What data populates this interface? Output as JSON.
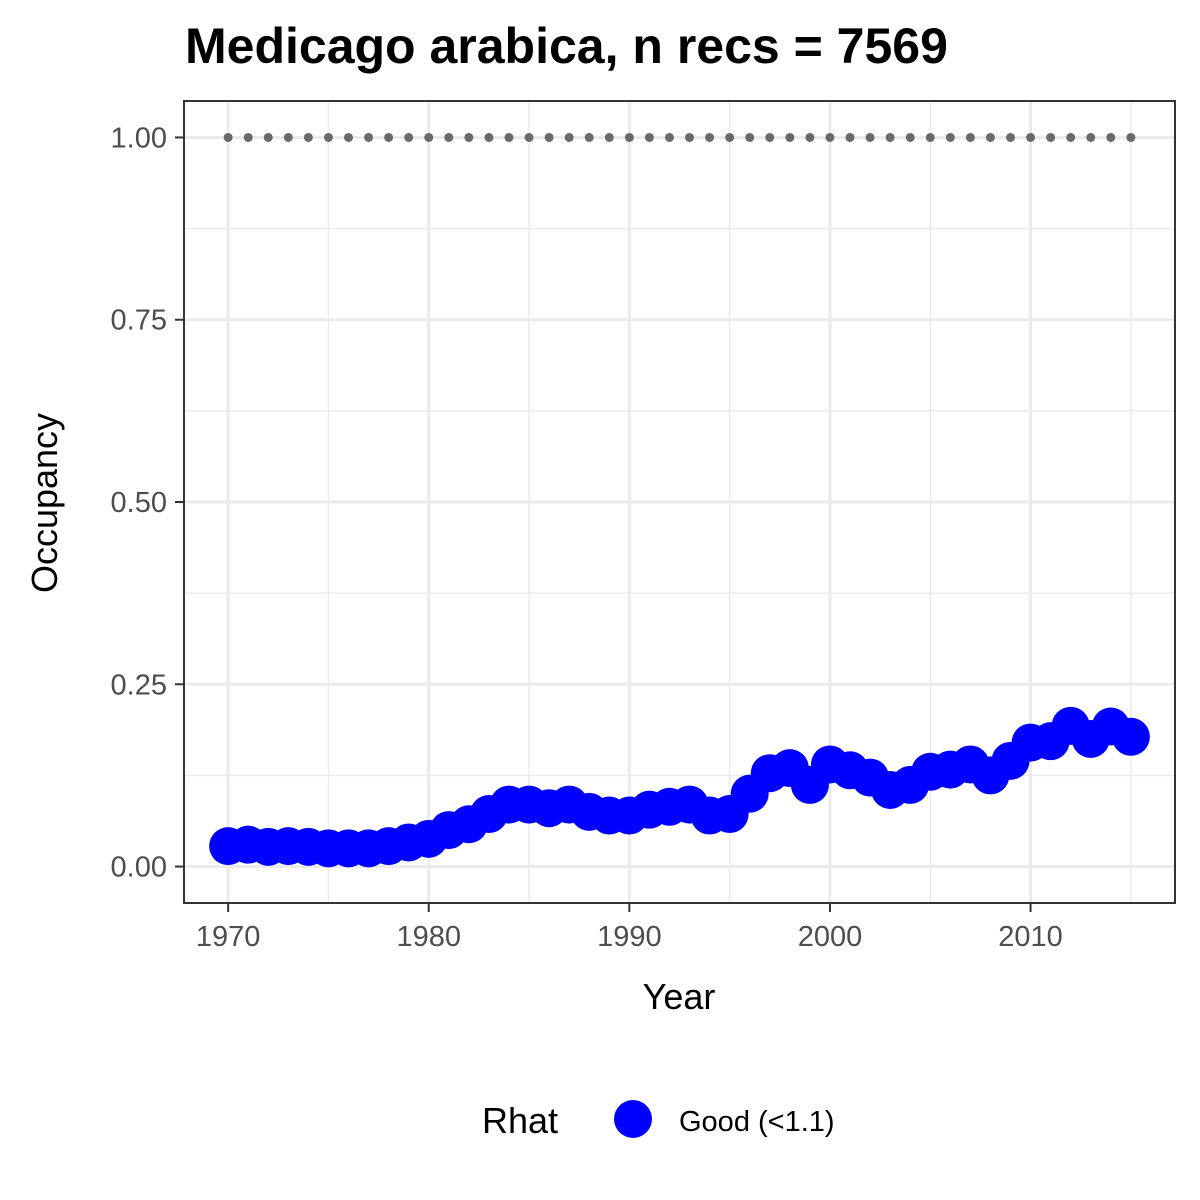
{
  "chart_data": {
    "type": "scatter",
    "title": "Medicago arabica, n recs = 7569",
    "xlabel": "Year",
    "ylabel": "Occupancy",
    "xlim": [
      1967.8,
      2017.2
    ],
    "ylim": [
      -0.05,
      1.05
    ],
    "x_ticks": [
      1970,
      1980,
      1990,
      2000,
      2010
    ],
    "x_tick_labels": [
      "1970",
      "1980",
      "1990",
      "2000",
      "2010"
    ],
    "y_ticks": [
      0,
      0.25,
      0.5,
      0.75,
      1
    ],
    "y_tick_labels": [
      "0.00",
      "0.25",
      "0.50",
      "0.75",
      "1.00"
    ],
    "grid": true,
    "legend": {
      "title": "Rhat",
      "position": "bottom",
      "entries": [
        "Good (<1.1)"
      ]
    },
    "series": [
      {
        "name": "Good (<1.1)",
        "color": "#0000ff",
        "x": [
          1970,
          1971,
          1972,
          1973,
          1974,
          1975,
          1976,
          1977,
          1978,
          1979,
          1980,
          1981,
          1982,
          1983,
          1984,
          1985,
          1986,
          1987,
          1988,
          1989,
          1990,
          1991,
          1992,
          1993,
          1994,
          1995,
          1996,
          1997,
          1998,
          1999,
          2000,
          2001,
          2002,
          2003,
          2004,
          2005,
          2006,
          2007,
          2008,
          2009,
          2010,
          2011,
          2012,
          2013,
          2014,
          2015
        ],
        "y": [
          0.028,
          0.03,
          0.027,
          0.028,
          0.027,
          0.025,
          0.025,
          0.025,
          0.028,
          0.033,
          0.038,
          0.05,
          0.058,
          0.072,
          0.085,
          0.085,
          0.08,
          0.085,
          0.075,
          0.07,
          0.07,
          0.078,
          0.082,
          0.085,
          0.07,
          0.072,
          0.1,
          0.128,
          0.135,
          0.112,
          0.14,
          0.132,
          0.122,
          0.105,
          0.112,
          0.13,
          0.133,
          0.14,
          0.125,
          0.145,
          0.17,
          0.172,
          0.193,
          0.175,
          0.192,
          0.178
        ]
      },
      {
        "name": "",
        "color": "#696969",
        "x": [
          1970,
          1971,
          1972,
          1973,
          1974,
          1975,
          1976,
          1977,
          1978,
          1979,
          1980,
          1981,
          1982,
          1983,
          1984,
          1985,
          1986,
          1987,
          1988,
          1989,
          1990,
          1991,
          1992,
          1993,
          1994,
          1995,
          1996,
          1997,
          1998,
          1999,
          2000,
          2001,
          2002,
          2003,
          2004,
          2005,
          2006,
          2007,
          2008,
          2009,
          2010,
          2011,
          2012,
          2013,
          2014,
          2015
        ],
        "y": [
          1,
          1,
          1,
          1,
          1,
          1,
          1,
          1,
          1,
          1,
          1,
          1,
          1,
          1,
          1,
          1,
          1,
          1,
          1,
          1,
          1,
          1,
          1,
          1,
          1,
          1,
          1,
          1,
          1,
          1,
          1,
          1,
          1,
          1,
          1,
          1,
          1,
          1,
          1,
          1,
          1,
          1,
          1,
          1,
          1,
          1
        ]
      }
    ]
  }
}
